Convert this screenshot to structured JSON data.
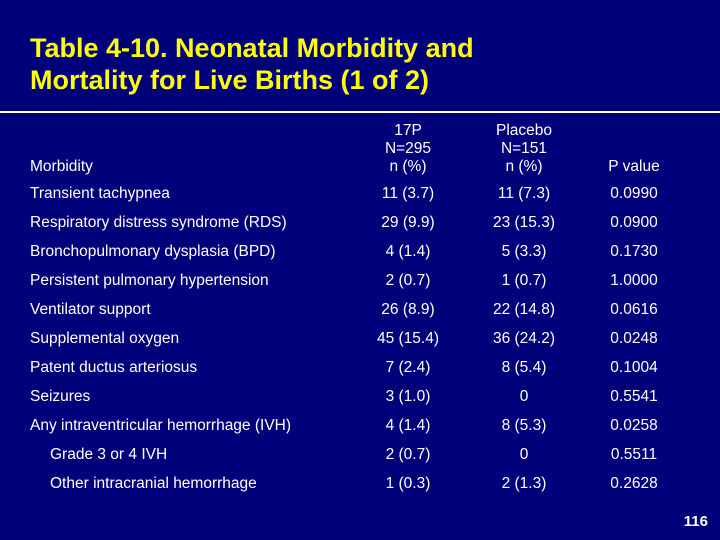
{
  "slide": {
    "title_line1": "Table 4‑10.     Neonatal Morbidity and",
    "title_line2": "Mortality for Live Births (1 of 2)",
    "page_number": "116"
  },
  "table": {
    "headers": {
      "label": "Morbidity",
      "col1": [
        "17P",
        "N=295",
        "n (%)"
      ],
      "col2": [
        "Placebo",
        "N=151",
        "n (%)"
      ],
      "col3": "P value"
    },
    "rows": [
      {
        "label": "Transient tachypnea",
        "v1": "11 (3.7)",
        "v2": "11 (7.3)",
        "p": "0.0990"
      },
      {
        "label": "Respiratory distress syndrome (RDS)",
        "v1": "29 (9.9)",
        "v2": "23 (15.3)",
        "p": "0.0900"
      },
      {
        "label": "Bronchopulmonary dysplasia (BPD)",
        "v1": "4 (1.4)",
        "v2": "5 (3.3)",
        "p": "0.1730"
      },
      {
        "label": "Persistent pulmonary hypertension",
        "v1": "2 (0.7)",
        "v2": "1 (0.7)",
        "p": "1.0000"
      },
      {
        "label": "Ventilator support",
        "v1": "26 (8.9)",
        "v2": "22 (14.8)",
        "p": "0.0616"
      },
      {
        "label": "Supplemental oxygen",
        "v1": "45 (15.4)",
        "v2": "36 (24.2)",
        "p": "0.0248"
      },
      {
        "label": "Patent ductus arteriosus",
        "v1": "7 (2.4)",
        "v2": "8 (5.4)",
        "p": "0.1004"
      },
      {
        "label": "Seizures",
        "v1": "3 (1.0)",
        "v2": "0",
        "p": "0.5541"
      },
      {
        "label": "Any intraventricular hemorrhage (IVH)",
        "v1": "4 (1.4)",
        "v2": "8 (5.3)",
        "p": "0.0258"
      },
      {
        "label": "Grade 3 or 4 IVH",
        "v1": "2 (0.7)",
        "v2": "0",
        "p": "0.5511",
        "indent": true
      },
      {
        "label": "Other intracranial hemorrhage",
        "v1": "1 (0.3)",
        "v2": "2 (1.3)",
        "p": "0.2628",
        "indent": true
      }
    ]
  },
  "colors": {
    "background": "#00007a",
    "title": "#ffff00",
    "text": "#ffffff"
  }
}
